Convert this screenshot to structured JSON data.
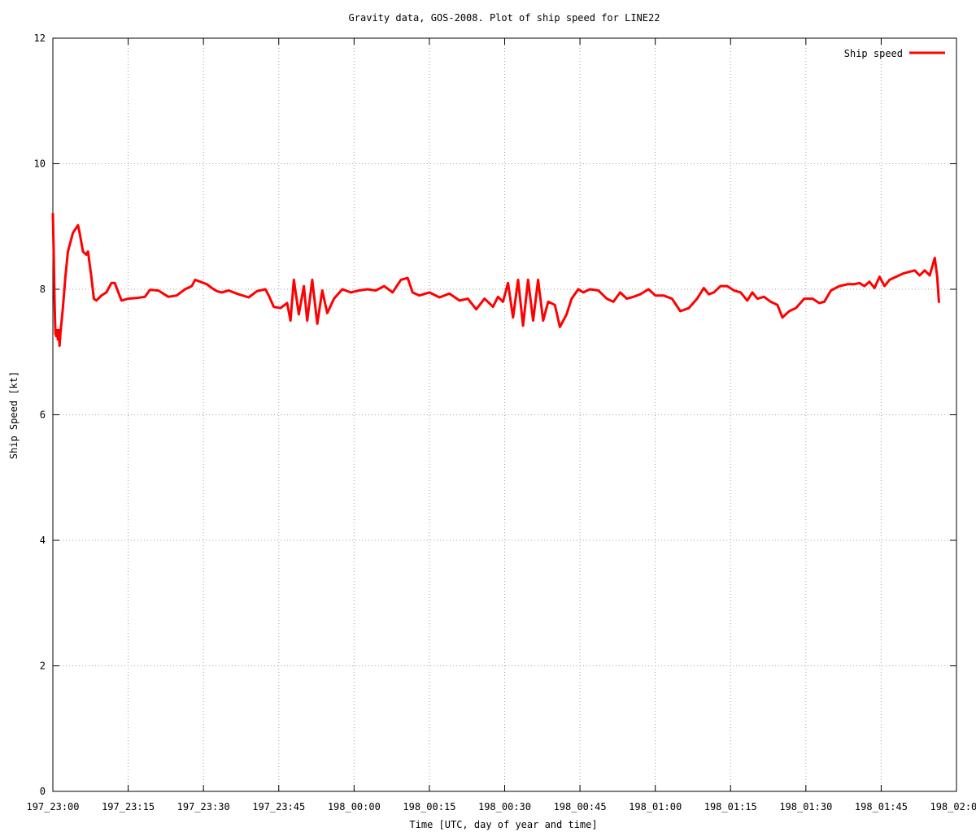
{
  "chart_data": {
    "type": "line",
    "title": "Gravity data, GOS-2008. Plot of ship speed for LINE22",
    "xlabel": "Time [UTC, day of year and time]",
    "ylabel": "Ship Speed [kt]",
    "xlim": [
      "197_23:00",
      "198_02:00"
    ],
    "ylim": [
      0,
      12
    ],
    "x_ticks": [
      "197_23:00",
      "197_23:15",
      "197_23:30",
      "197_23:45",
      "198_00:00",
      "198_00:15",
      "198_00:30",
      "198_00:45",
      "198_01:00",
      "198_01:15",
      "198_01:30",
      "198_01:45",
      "198_02:00"
    ],
    "y_ticks": [
      "0",
      "2",
      "4",
      "6",
      "8",
      "10",
      "12"
    ],
    "grid": true,
    "legend": {
      "position": "top-right"
    },
    "series": [
      {
        "name": "Ship speed",
        "color": "#ff0000",
        "x": [
          "197_23:00:00",
          "197_23:00:10",
          "197_23:00:20",
          "197_23:00:30",
          "197_23:00:40",
          "197_23:00:50",
          "197_23:01:00",
          "197_23:01:10",
          "197_23:01:20",
          "197_23:01:30",
          "197_23:02:00",
          "197_23:02:30",
          "197_23:03:00",
          "197_23:04:00",
          "197_23:05:00",
          "197_23:05:20",
          "197_23:06:00",
          "197_23:06:40",
          "197_23:07:00",
          "197_23:07:40",
          "197_23:08:10",
          "197_23:08:40",
          "197_23:09:40",
          "197_23:10:40",
          "197_23:11:40",
          "197_23:12:20",
          "197_23:13:40",
          "197_23:15:00",
          "197_23:16:40",
          "197_23:18:20",
          "197_23:19:20",
          "197_23:21:00",
          "197_23:23:00",
          "197_23:24:40",
          "197_23:26:20",
          "197_23:27:40",
          "197_23:28:20",
          "197_23:29:20",
          "197_23:30:40",
          "197_23:31:40",
          "197_23:32:40",
          "197_23:33:40",
          "197_23:35:00",
          "197_23:37:00",
          "197_23:39:00",
          "197_23:40:40",
          "197_23:42:20",
          "197_23:43:00",
          "197_23:44:00",
          "197_23:45:20",
          "197_23:46:40",
          "197_23:47:20",
          "197_23:48:00",
          "197_23:49:00",
          "197_23:50:00",
          "197_23:50:40",
          "197_23:51:40",
          "197_23:52:40",
          "197_23:53:40",
          "197_23:54:40",
          "197_23:56:00",
          "197_23:57:40",
          "197_23:59:20",
          "198_00:01:00",
          "198_00:02:40",
          "198_00:04:20",
          "198_00:06:00",
          "198_00:07:40",
          "198_00:09:20",
          "198_00:10:40",
          "198_00:11:40",
          "198_00:13:00",
          "198_00:15:00",
          "198_00:17:00",
          "198_00:19:00",
          "198_00:21:00",
          "198_00:22:40",
          "198_00:24:20",
          "198_00:26:00",
          "198_00:27:40",
          "198_00:28:40",
          "198_00:29:40",
          "198_00:30:40",
          "198_00:31:40",
          "198_00:32:40",
          "198_00:33:40",
          "198_00:34:40",
          "198_00:35:40",
          "198_00:36:40",
          "198_00:37:40",
          "198_00:38:40",
          "198_00:40:00",
          "198_00:41:00",
          "198_00:42:20",
          "198_00:43:20",
          "198_00:44:40",
          "198_00:45:40",
          "198_00:47:00",
          "198_00:48:40",
          "198_00:50:20",
          "198_00:51:40",
          "198_00:53:00",
          "198_00:54:20",
          "198_00:55:40",
          "198_00:57:00",
          "198_00:58:40",
          "198_01:00:00",
          "198_01:01:40",
          "198_01:03:20",
          "198_01:05:00",
          "198_01:06:40",
          "198_01:08:20",
          "198_01:09:40",
          "198_01:10:40",
          "198_01:11:40",
          "198_01:13:00",
          "198_01:14:20",
          "198_01:15:40",
          "198_01:17:00",
          "198_01:18:20",
          "198_01:19:20",
          "198_01:20:20",
          "198_01:21:40",
          "198_01:23:00",
          "198_01:24:20",
          "198_01:25:20",
          "198_01:26:40",
          "198_01:28:00",
          "198_01:29:40",
          "198_01:31:20",
          "198_01:32:40",
          "198_01:33:40",
          "198_01:35:00",
          "198_01:36:40",
          "198_01:38:20",
          "198_01:39:40",
          "198_01:40:40",
          "198_01:41:40",
          "198_01:42:40",
          "198_01:43:40",
          "198_01:44:40",
          "198_01:45:40",
          "198_01:46:40",
          "198_01:48:00",
          "198_01:49:20",
          "198_01:50:40",
          "198_01:51:40",
          "198_01:52:40",
          "198_01:53:40",
          "198_01:54:40",
          "198_01:55:40",
          "198_01:56:10",
          "198_01:56:30"
        ],
        "y": [
          9.2,
          8.6,
          7.8,
          7.3,
          7.25,
          7.35,
          7.2,
          7.35,
          7.1,
          7.3,
          7.7,
          8.2,
          8.6,
          8.9,
          9.02,
          8.9,
          8.6,
          8.55,
          8.6,
          8.2,
          7.85,
          7.82,
          7.9,
          7.95,
          8.1,
          8.1,
          7.82,
          7.85,
          7.86,
          7.88,
          7.99,
          7.98,
          7.88,
          7.9,
          8.0,
          8.05,
          8.15,
          8.12,
          8.08,
          8.02,
          7.97,
          7.95,
          7.98,
          7.92,
          7.87,
          7.97,
          8.0,
          7.9,
          7.72,
          7.7,
          7.78,
          7.5,
          8.15,
          7.6,
          8.05,
          7.5,
          8.15,
          7.45,
          7.98,
          7.62,
          7.85,
          8.0,
          7.95,
          7.98,
          8.0,
          7.98,
          8.05,
          7.95,
          8.15,
          8.18,
          7.95,
          7.9,
          7.95,
          7.87,
          7.93,
          7.82,
          7.85,
          7.68,
          7.85,
          7.72,
          7.88,
          7.8,
          8.1,
          7.55,
          8.15,
          7.42,
          8.15,
          7.5,
          8.15,
          7.5,
          7.8,
          7.75,
          7.4,
          7.6,
          7.85,
          8.0,
          7.95,
          8.0,
          7.98,
          7.85,
          7.8,
          7.95,
          7.85,
          7.88,
          7.92,
          8.0,
          7.9,
          7.9,
          7.85,
          7.65,
          7.7,
          7.85,
          8.02,
          7.92,
          7.95,
          8.05,
          8.05,
          7.98,
          7.95,
          7.82,
          7.95,
          7.85,
          7.88,
          7.8,
          7.75,
          7.55,
          7.65,
          7.7,
          7.85,
          7.85,
          7.78,
          7.8,
          7.98,
          8.05,
          8.08,
          8.08,
          8.1,
          8.05,
          8.12,
          8.02,
          8.2,
          8.05,
          8.15,
          8.2,
          8.25,
          8.28,
          8.3,
          8.22,
          8.3,
          8.22,
          8.5,
          8.2,
          7.8
        ]
      }
    ]
  }
}
